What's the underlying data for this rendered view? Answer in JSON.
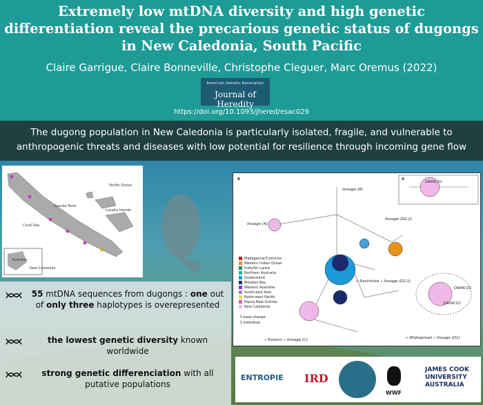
{
  "header": {
    "title": "Extremely low mtDNA diversity and high genetic differentiation reveal the precarious genetic status of dugongs in New Caledonia, South Pacific",
    "authors": "Claire Garrigue, Claire Bonneville, Christophe Cleguer, Marc Oremus (2022)",
    "journal_association": "American Genetic Association",
    "journal": "Journal of Heredity",
    "doi": "https://doi.org/10.1093/jhered/esac029"
  },
  "summary": "The dugong population in New Caledonia is particularly isolated, fragile, and vulnerable to anthropogenic threats and diseases with low potential for resilience through incoming gene flow",
  "map": {
    "labels": [
      "Coral Sea",
      "Grande Terre",
      "Loyalty Islands",
      "Pacific Ocean",
      "Australia",
      "New Caledonia"
    ]
  },
  "network": {
    "panel_b": "B",
    "panel_a": "A",
    "lineages": [
      "lineage (B)",
      "lineage (A)",
      "lineage (D2.2)",
      "« Restricted » lineage (D2.1)",
      "« Eastern » lineage (C)",
      "« Widespread » lineage (D1)"
    ],
    "legend": [
      "Madagascar/Comoros",
      "Western Indian Ocean",
      "India/Sri Lanka",
      "Northern Australia",
      "Queensland",
      "Moreton Bay",
      "Western Australia",
      "South-east Asia",
      "North-west Pacific",
      "Papua New-Guinea",
      "New Caledonia"
    ],
    "scale": [
      "5 base change",
      "1 individual"
    ],
    "haplotypes": [
      "DAVNCO1",
      "DAVNCO2",
      "DAVNCO3"
    ]
  },
  "bullets": [
    [
      {
        "text": "55",
        "bold": true
      },
      {
        "text": " mtDNA sequences from dugongs : ",
        "bold": false
      },
      {
        "text": "one",
        "bold": true
      },
      {
        "text": " out of ",
        "bold": false
      },
      {
        "text": "only three",
        "bold": true
      },
      {
        "text": " haplotypes is overepresented",
        "bold": false
      }
    ],
    [
      {
        "text": "the lowest genetic diversity",
        "bold": true
      },
      {
        "text": " known worldwide",
        "bold": false
      }
    ],
    [
      {
        "text": "strong genetic differenciation",
        "bold": true
      },
      {
        "text": " with all putative populations",
        "bold": false
      }
    ]
  ],
  "logos": [
    "ENTROPIE",
    "IRD",
    "WWF",
    "JAMES COOK UNIVERSITY AUSTRALIA"
  ]
}
